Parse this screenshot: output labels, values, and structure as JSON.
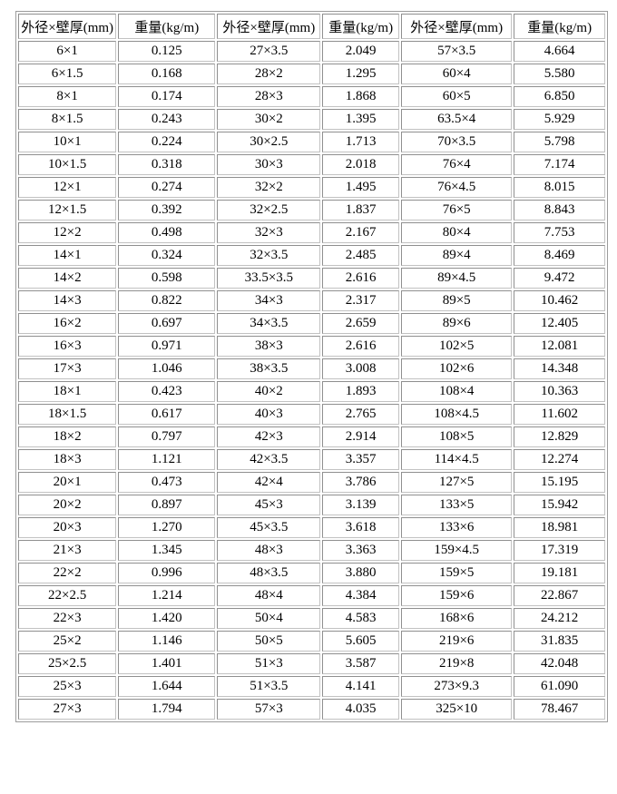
{
  "table": {
    "name": "pipe-weight-table",
    "columns": [
      "外径×壁厚(mm)",
      "重量(kg/m)",
      "外径×壁厚(mm)",
      "重量(kg/m)",
      "外径×壁厚(mm)",
      "重量(kg/m)"
    ],
    "rows": [
      [
        "6×1",
        "0.125",
        "27×3.5",
        "2.049",
        "57×3.5",
        "4.664"
      ],
      [
        "6×1.5",
        "0.168",
        "28×2",
        "1.295",
        "60×4",
        "5.580"
      ],
      [
        "8×1",
        "0.174",
        "28×3",
        "1.868",
        "60×5",
        "6.850"
      ],
      [
        "8×1.5",
        "0.243",
        "30×2",
        "1.395",
        "63.5×4",
        "5.929"
      ],
      [
        "10×1",
        "0.224",
        "30×2.5",
        "1.713",
        "70×3.5",
        "5.798"
      ],
      [
        "10×1.5",
        "0.318",
        "30×3",
        "2.018",
        "76×4",
        "7.174"
      ],
      [
        "12×1",
        "0.274",
        "32×2",
        "1.495",
        "76×4.5",
        "8.015"
      ],
      [
        "12×1.5",
        "0.392",
        "32×2.5",
        "1.837",
        "76×5",
        "8.843"
      ],
      [
        "12×2",
        "0.498",
        "32×3",
        "2.167",
        "80×4",
        "7.753"
      ],
      [
        "14×1",
        "0.324",
        "32×3.5",
        "2.485",
        "89×4",
        "8.469"
      ],
      [
        "14×2",
        "0.598",
        "33.5×3.5",
        "2.616",
        "89×4.5",
        "9.472"
      ],
      [
        "14×3",
        "0.822",
        "34×3",
        "2.317",
        "89×5",
        "10.462"
      ],
      [
        "16×2",
        "0.697",
        "34×3.5",
        "2.659",
        "89×6",
        "12.405"
      ],
      [
        "16×3",
        "0.971",
        "38×3",
        "2.616",
        "102×5",
        "12.081"
      ],
      [
        "17×3",
        "1.046",
        "38×3.5",
        "3.008",
        "102×6",
        "14.348"
      ],
      [
        "18×1",
        "0.423",
        "40×2",
        "1.893",
        "108×4",
        "10.363"
      ],
      [
        "18×1.5",
        "0.617",
        "40×3",
        "2.765",
        "108×4.5",
        "11.602"
      ],
      [
        "18×2",
        "0.797",
        "42×3",
        "2.914",
        "108×5",
        "12.829"
      ],
      [
        "18×3",
        "1.121",
        "42×3.5",
        "3.357",
        "114×4.5",
        "12.274"
      ],
      [
        "20×1",
        "0.473",
        "42×4",
        "3.786",
        "127×5",
        "15.195"
      ],
      [
        "20×2",
        "0.897",
        "45×3",
        "3.139",
        "133×5",
        "15.942"
      ],
      [
        "20×3",
        "1.270",
        "45×3.5",
        "3.618",
        "133×6",
        "18.981"
      ],
      [
        "21×3",
        "1.345",
        "48×3",
        "3.363",
        "159×4.5",
        "17.319"
      ],
      [
        "22×2",
        "0.996",
        "48×3.5",
        "3.880",
        "159×5",
        "19.181"
      ],
      [
        "22×2.5",
        "1.214",
        "48×4",
        "4.384",
        "159×6",
        "22.867"
      ],
      [
        "22×3",
        "1.420",
        "50×4",
        "4.583",
        "168×6",
        "24.212"
      ],
      [
        "25×2",
        "1.146",
        "50×5",
        "5.605",
        "219×6",
        "31.835"
      ],
      [
        "25×2.5",
        "1.401",
        "51×3",
        "3.587",
        "219×8",
        "42.048"
      ],
      [
        "25×3",
        "1.644",
        "51×3.5",
        "4.141",
        "273×9.3",
        "61.090"
      ],
      [
        "27×3",
        "1.794",
        "57×3",
        "4.035",
        "325×10",
        "78.467"
      ]
    ],
    "colors": {
      "border": "#9c9c9c",
      "border_dark": "#8f8f8f",
      "border_light": "#c2c2c2",
      "text": "#000000",
      "background": "#ffffff"
    }
  }
}
